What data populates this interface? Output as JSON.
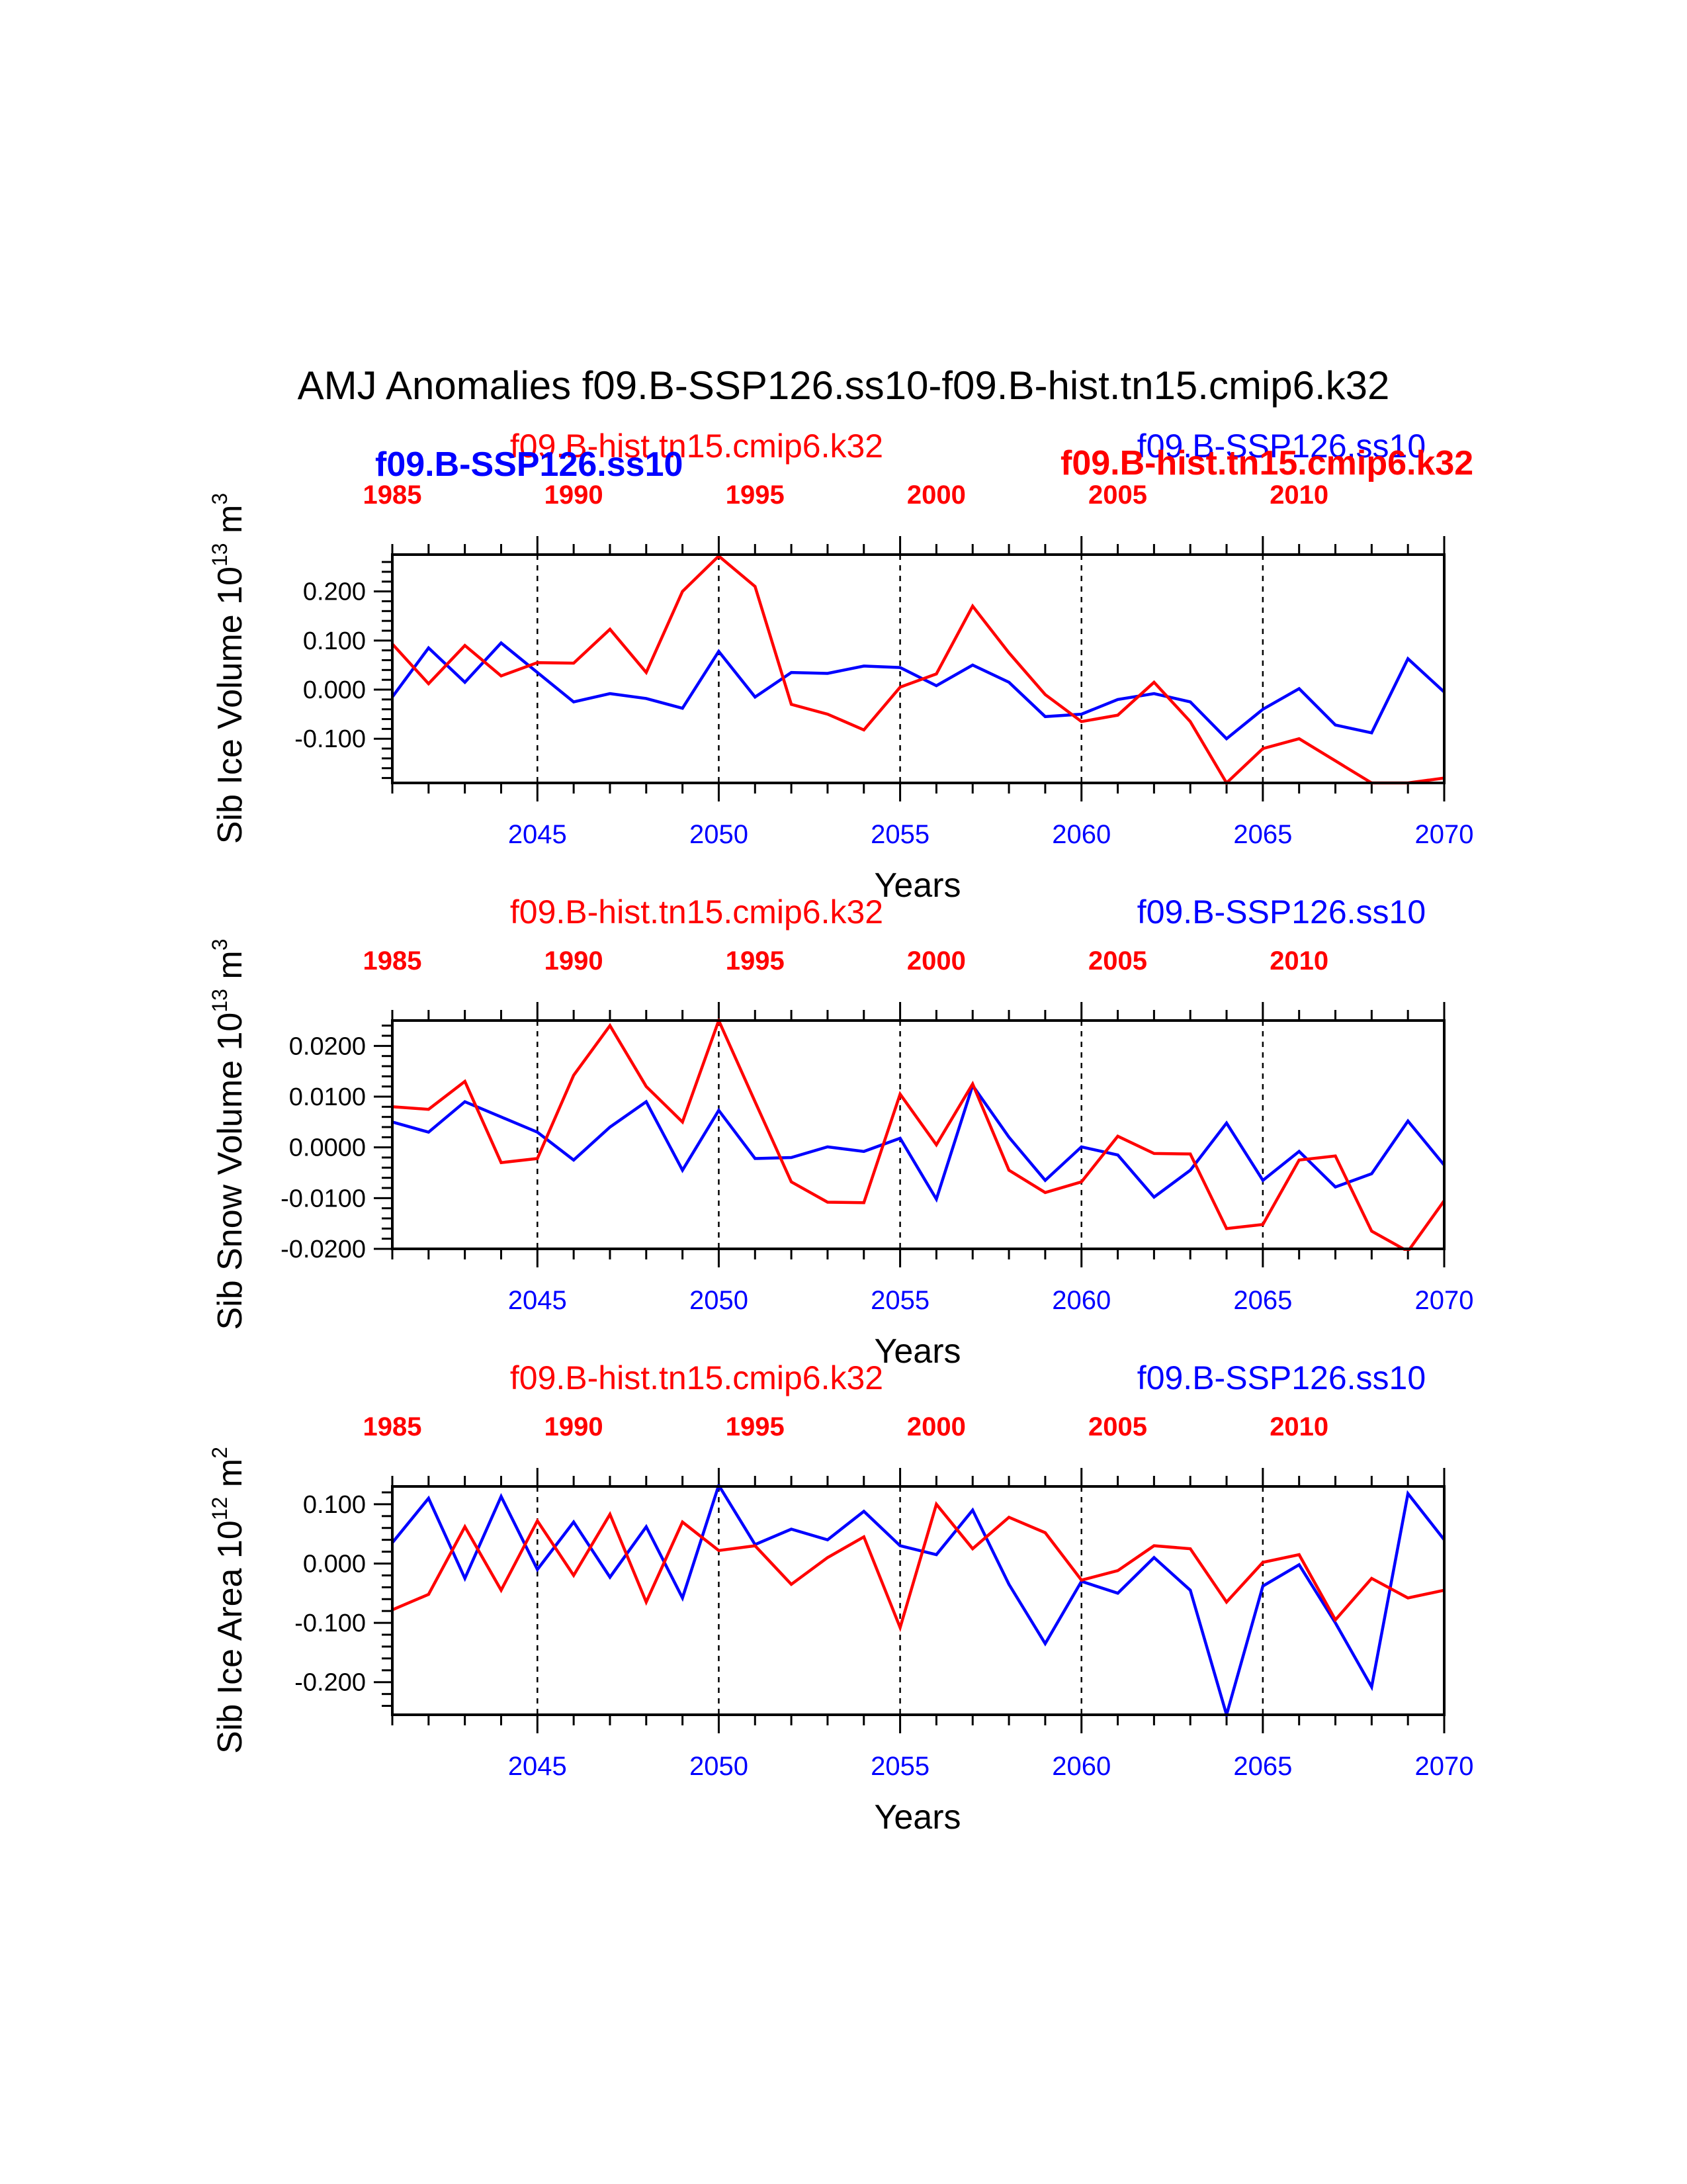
{
  "colors": {
    "red": "#ff0000",
    "blue": "#0000ff",
    "black": "#000000"
  },
  "title": "AMJ Anomalies f09.B-SSP126.ss10-f09.B-hist.tn15.cmip6.k32",
  "chart_data": [
    {
      "type": "line",
      "xlabel": "Years",
      "ylabel": {
        "text": "Sib Ice Volume 10",
        "sup1": "13",
        "unit": " m",
        "sup2": "3"
      },
      "xlim": [
        2041,
        2070
      ],
      "ylim": [
        -0.19,
        0.275
      ],
      "bottom_x_ticks": [
        2045,
        2050,
        2055,
        2060,
        2065,
        2070
      ],
      "bottom_x_tick_labels": [
        "2045",
        "2050",
        "2055",
        "2060",
        "2065",
        "2070"
      ],
      "top_x_tick_labels": [
        "1985",
        "1990",
        "1995",
        "2000",
        "2005",
        "2010"
      ],
      "y_ticks": [
        0.2,
        0.1,
        0.0,
        -0.1
      ],
      "y_tick_labels": [
        "0.200",
        "0.100",
        "0.000",
        "-0.100"
      ],
      "y_minor_step": 0.02,
      "reference_years": [
        2045,
        2050,
        2055,
        2060,
        2065
      ],
      "legend_left": "f09.B-hist.tn15.cmip6.k32",
      "legend_right": "f09.B-SSP126.ss10",
      "overlap_labels": {
        "bold_blue_left": "f09.B-SSP126.ss10",
        "bold_red_right": "f09.B-hist.tn15.cmip6.k32"
      },
      "series": [
        {
          "name": "f09.B-SSP126.ss10",
          "color": "#0000ff",
          "values": [
            -0.015,
            0.085,
            0.015,
            0.095,
            0.035,
            -0.025,
            -0.008,
            -0.018,
            -0.038,
            0.078,
            -0.015,
            0.035,
            0.033,
            0.048,
            0.045,
            0.008,
            0.05,
            0.015,
            -0.055,
            -0.05,
            -0.02,
            -0.008,
            -0.025,
            -0.1,
            -0.04,
            0.002,
            -0.072,
            -0.088,
            0.063,
            -0.005
          ]
        },
        {
          "name": "f09.B-hist.tn15.cmip6.k32",
          "color": "#ff0000",
          "values": [
            0.093,
            0.012,
            0.09,
            0.028,
            0.055,
            0.054,
            0.123,
            0.035,
            0.2,
            0.272,
            0.21,
            -0.03,
            -0.05,
            -0.082,
            0.005,
            0.032,
            0.17,
            0.075,
            -0.01,
            -0.065,
            -0.052,
            0.015,
            -0.065,
            -0.19,
            -0.12,
            -0.1,
            -0.145,
            -0.19,
            -0.19,
            -0.18
          ]
        }
      ]
    },
    {
      "type": "line",
      "xlabel": "Years",
      "ylabel": {
        "text": "Sib Snow Volume 10",
        "sup1": "13",
        "unit": " m",
        "sup2": "3"
      },
      "xlim": [
        2041,
        2070
      ],
      "ylim": [
        -0.02,
        0.025
      ],
      "bottom_x_ticks": [
        2045,
        2050,
        2055,
        2060,
        2065,
        2070
      ],
      "bottom_x_tick_labels": [
        "2045",
        "2050",
        "2055",
        "2060",
        "2065",
        "2070"
      ],
      "top_x_tick_labels": [
        "1985",
        "1990",
        "1995",
        "2000",
        "2005",
        "2010"
      ],
      "y_ticks": [
        0.02,
        0.01,
        0.0,
        -0.01,
        -0.02
      ],
      "y_tick_labels": [
        "0.0200",
        "0.0100",
        "0.0000",
        "-0.0100",
        "-0.0200"
      ],
      "y_minor_step": 0.002,
      "reference_years": [
        2045,
        2050,
        2055,
        2060,
        2065
      ],
      "legend_left": "f09.B-hist.tn15.cmip6.k32",
      "legend_right": "f09.B-SSP126.ss10",
      "series": [
        {
          "name": "f09.B-SSP126.ss10",
          "color": "#0000ff",
          "values": [
            0.005,
            0.003,
            0.009,
            0.006,
            0.003,
            -0.0025,
            0.004,
            0.009,
            -0.0045,
            0.0073,
            -0.0022,
            -0.002,
            0.0001,
            -0.0008,
            0.0018,
            -0.0102,
            0.0122,
            0.002,
            -0.0065,
            0.0001,
            -0.0015,
            -0.0098,
            -0.0045,
            0.0048,
            -0.0065,
            -0.0008,
            -0.0078,
            -0.0052,
            0.0052,
            -0.0035
          ]
        },
        {
          "name": "f09.B-hist.tn15.cmip6.k32",
          "color": "#ff0000",
          "values": [
            0.008,
            0.0075,
            0.013,
            -0.003,
            -0.0022,
            0.0142,
            0.024,
            0.012,
            0.005,
            0.025,
            0.009,
            -0.0068,
            -0.0108,
            -0.0109,
            0.0105,
            0.0005,
            0.0125,
            -0.0045,
            -0.0089,
            -0.0068,
            0.0022,
            -0.0012,
            -0.0013,
            -0.016,
            -0.0152,
            -0.0025,
            -0.0017,
            -0.0165,
            -0.0205,
            -0.0105
          ]
        }
      ]
    },
    {
      "type": "line",
      "xlabel": "Years",
      "ylabel": {
        "text": "Sib Ice Area 10",
        "sup1": "12",
        "unit": " m",
        "sup2": "2"
      },
      "xlim": [
        2041,
        2070
      ],
      "ylim": [
        -0.255,
        0.13
      ],
      "bottom_x_ticks": [
        2045,
        2050,
        2055,
        2060,
        2065,
        2070
      ],
      "bottom_x_tick_labels": [
        "2045",
        "2050",
        "2055",
        "2060",
        "2065",
        "2070"
      ],
      "top_x_tick_labels": [
        "1985",
        "1990",
        "1995",
        "2000",
        "2005",
        "2010"
      ],
      "y_ticks": [
        0.1,
        0.0,
        -0.1,
        -0.2
      ],
      "y_tick_labels": [
        "0.100",
        "0.000",
        "-0.100",
        "-0.200"
      ],
      "y_minor_step": 0.02,
      "reference_years": [
        2045,
        2050,
        2055,
        2060,
        2065
      ],
      "legend_left": "f09.B-hist.tn15.cmip6.k32",
      "legend_right": "f09.B-SSP126.ss10",
      "series": [
        {
          "name": "f09.B-SSP126.ss10",
          "color": "#0000ff",
          "values": [
            0.035,
            0.11,
            -0.025,
            0.113,
            -0.01,
            0.07,
            -0.023,
            0.062,
            -0.058,
            0.132,
            0.032,
            0.058,
            0.04,
            0.088,
            0.03,
            0.015,
            0.09,
            -0.035,
            -0.135,
            -0.03,
            -0.05,
            0.01,
            -0.045,
            -0.255,
            -0.038,
            -0.002,
            -0.1,
            -0.208,
            0.118,
            0.04
          ]
        },
        {
          "name": "f09.B-hist.tn15.cmip6.k32",
          "color": "#ff0000",
          "values": [
            -0.078,
            -0.052,
            0.062,
            -0.045,
            0.072,
            -0.02,
            0.083,
            -0.065,
            0.07,
            0.022,
            0.03,
            -0.035,
            0.01,
            0.045,
            -0.108,
            0.1,
            0.025,
            0.078,
            0.052,
            -0.028,
            -0.012,
            0.03,
            0.025,
            -0.065,
            0.002,
            0.015,
            -0.095,
            -0.025,
            -0.058,
            -0.045
          ]
        }
      ]
    }
  ]
}
